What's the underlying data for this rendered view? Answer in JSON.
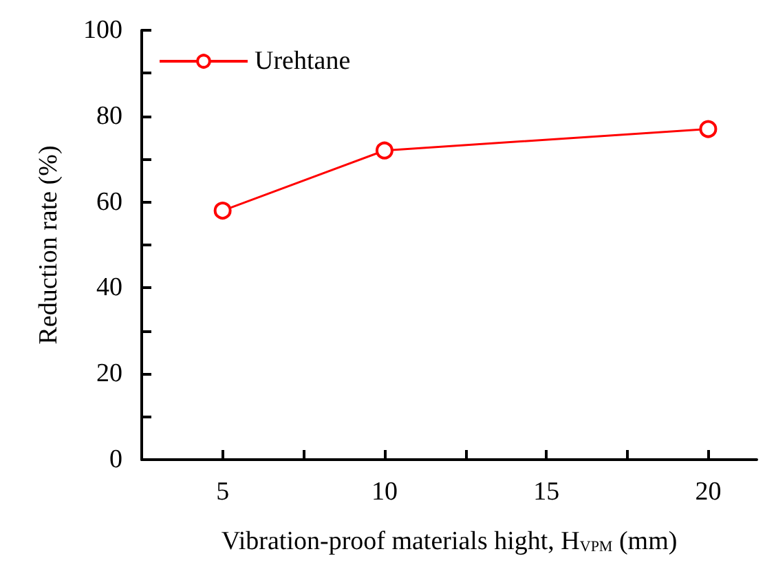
{
  "chart_data": {
    "type": "line",
    "xlabel": "Vibration-proof materials hight, H$_{VPM}$ (mm)",
    "ylabel": "Reduction rate (%)",
    "x": [
      5,
      10,
      20
    ],
    "series": [
      {
        "name": "Urehtane",
        "color": "#ff0000",
        "values": [
          58,
          72,
          77
        ]
      }
    ],
    "xlim": [
      2.5,
      21.5
    ],
    "xticks": [
      5,
      {
        "value": 7.5,
        "label": null
      },
      10,
      {
        "value": 12.5,
        "label": null
      },
      15,
      {
        "value": 17.5,
        "label": null
      },
      20
    ],
    "ylim": [
      0,
      100
    ],
    "yticks": [
      0,
      {
        "value": 10,
        "label": null
      },
      20,
      {
        "value": 30,
        "label": null
      },
      40,
      {
        "value": 50,
        "label": null
      },
      60,
      {
        "value": 70,
        "label": null
      },
      80,
      {
        "value": 90,
        "label": null
      },
      100
    ],
    "grid": false,
    "legend": "top left",
    "marker": "circle",
    "line_style": "solid"
  }
}
